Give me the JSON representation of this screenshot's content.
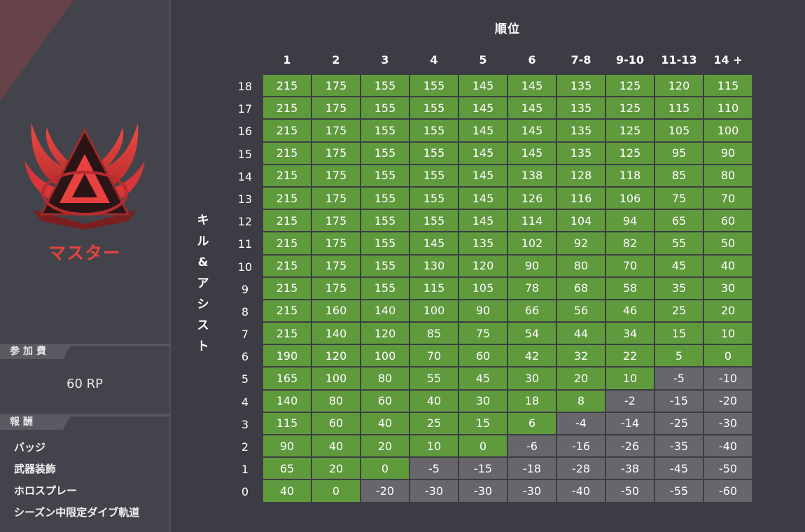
{
  "sidebar": {
    "rank_name": "マスター",
    "entry_fee_label": "参加費",
    "entry_fee_value": "60 RP",
    "rewards_label": "報酬",
    "rewards": [
      "バッジ",
      "武器装飾",
      "ホロスプレー",
      "シーズン中限定ダイブ軌道"
    ]
  },
  "table": {
    "title": "順位",
    "row_axis_label": "キル&アシスト",
    "columns": [
      "1",
      "2",
      "3",
      "4",
      "5",
      "6",
      "7-8",
      "9-10",
      "11-13",
      "14 +"
    ],
    "rows": [
      {
        "label": "18",
        "values": [
          215,
          175,
          155,
          155,
          145,
          145,
          135,
          125,
          120,
          115
        ]
      },
      {
        "label": "17",
        "values": [
          215,
          175,
          155,
          155,
          145,
          145,
          135,
          125,
          115,
          110
        ]
      },
      {
        "label": "16",
        "values": [
          215,
          175,
          155,
          155,
          145,
          145,
          135,
          125,
          105,
          100
        ]
      },
      {
        "label": "15",
        "values": [
          215,
          175,
          155,
          155,
          145,
          145,
          135,
          125,
          95,
          90
        ]
      },
      {
        "label": "14",
        "values": [
          215,
          175,
          155,
          155,
          145,
          138,
          128,
          118,
          85,
          80
        ]
      },
      {
        "label": "13",
        "values": [
          215,
          175,
          155,
          155,
          145,
          126,
          116,
          106,
          75,
          70
        ]
      },
      {
        "label": "12",
        "values": [
          215,
          175,
          155,
          155,
          145,
          114,
          104,
          94,
          65,
          60
        ]
      },
      {
        "label": "11",
        "values": [
          215,
          175,
          155,
          145,
          135,
          102,
          92,
          82,
          55,
          50
        ]
      },
      {
        "label": "10",
        "values": [
          215,
          175,
          155,
          130,
          120,
          90,
          80,
          70,
          45,
          40
        ]
      },
      {
        "label": "9",
        "values": [
          215,
          175,
          155,
          115,
          105,
          78,
          68,
          58,
          35,
          30
        ]
      },
      {
        "label": "8",
        "values": [
          215,
          160,
          140,
          100,
          90,
          66,
          56,
          46,
          25,
          20
        ]
      },
      {
        "label": "7",
        "values": [
          215,
          140,
          120,
          85,
          75,
          54,
          44,
          34,
          15,
          10
        ]
      },
      {
        "label": "6",
        "values": [
          190,
          120,
          100,
          70,
          60,
          42,
          32,
          22,
          5,
          0
        ]
      },
      {
        "label": "5",
        "values": [
          165,
          100,
          80,
          55,
          45,
          30,
          20,
          10,
          -5,
          -10
        ]
      },
      {
        "label": "4",
        "values": [
          140,
          80,
          60,
          40,
          30,
          18,
          8,
          -2,
          -15,
          -20
        ]
      },
      {
        "label": "3",
        "values": [
          115,
          60,
          40,
          25,
          15,
          6,
          -4,
          -14,
          -25,
          -30
        ]
      },
      {
        "label": "2",
        "values": [
          90,
          40,
          20,
          10,
          0,
          -6,
          -16,
          -26,
          -35,
          -40
        ]
      },
      {
        "label": "1",
        "values": [
          65,
          20,
          0,
          -5,
          -15,
          -18,
          -28,
          -38,
          -45,
          -50
        ]
      },
      {
        "label": "0",
        "values": [
          40,
          0,
          -20,
          -30,
          -30,
          -30,
          -40,
          -50,
          -55,
          -60
        ]
      }
    ],
    "positive_color": "#5f9a3d",
    "negative_color": "#66666b"
  },
  "icons": {
    "rank_emblem": "master-rank-emblem-icon"
  }
}
